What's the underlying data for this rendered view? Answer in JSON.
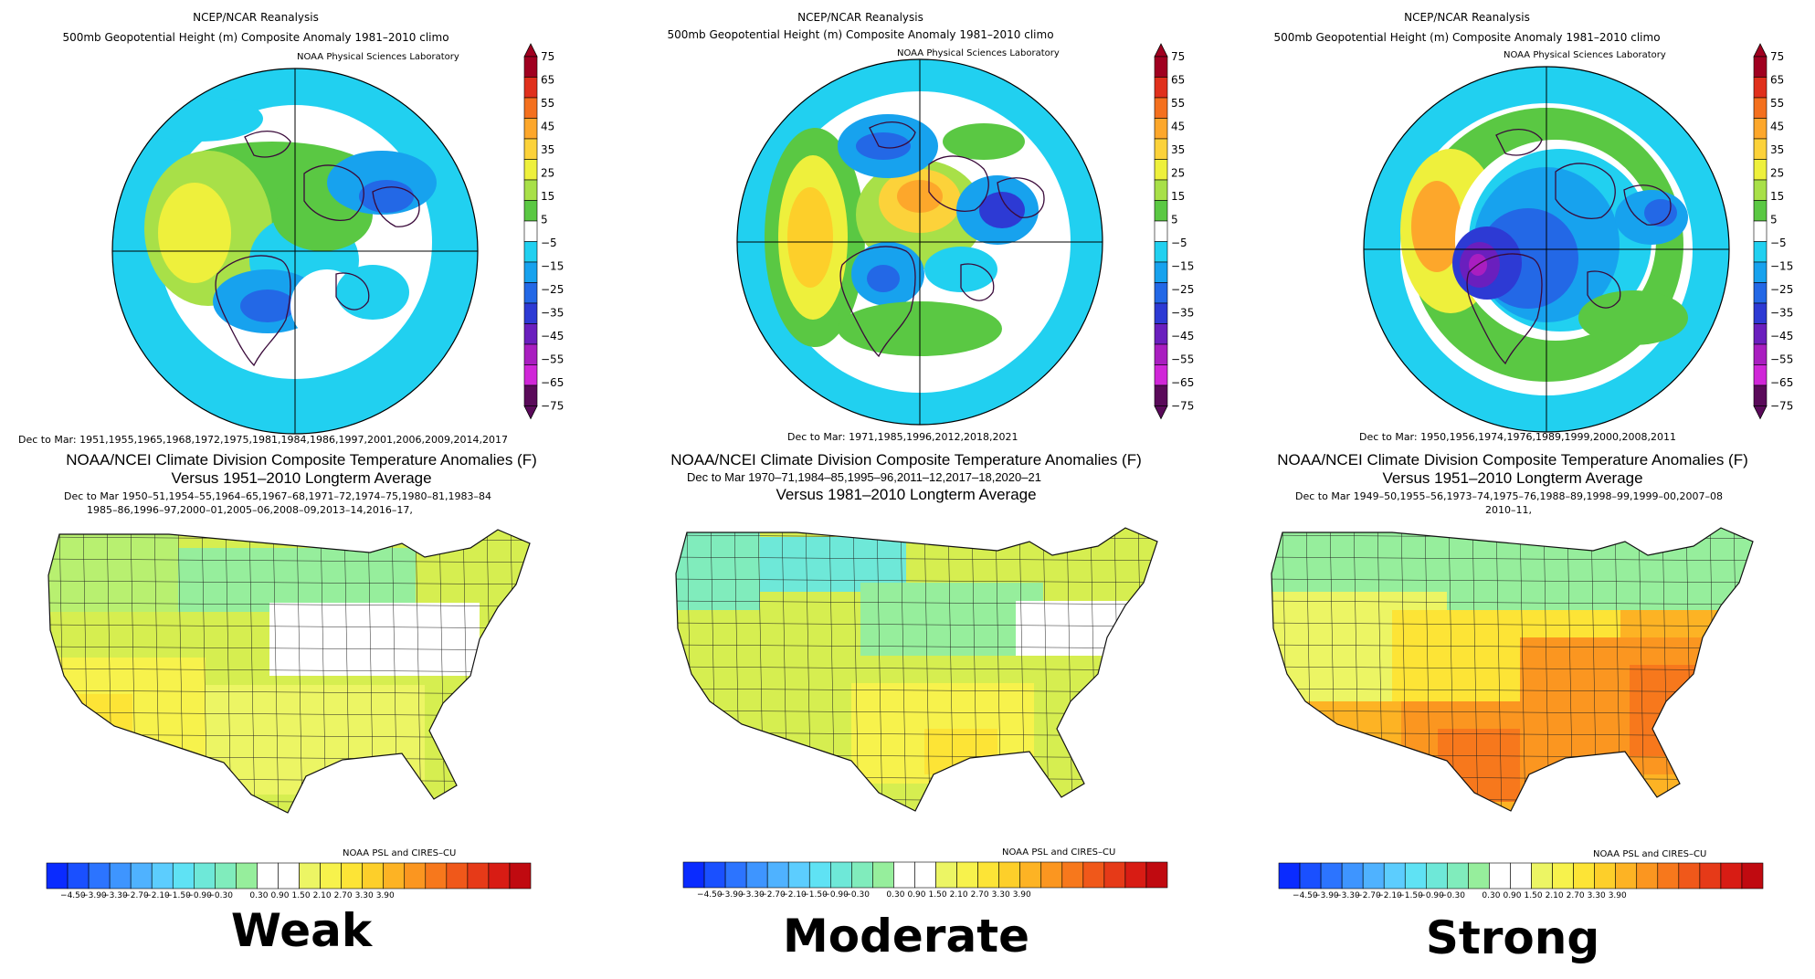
{
  "panels": [
    {
      "strength": "Weak",
      "reanalysis_title_1": "NCEP/NCAR Reanalysis",
      "reanalysis_title_2": "500mb Geopotential Height (m) Composite Anomaly 1981–2010 climo",
      "psl_credit": "NOAA Physical Sciences Laboratory",
      "reanalysis_years": "Dec to Mar: 1951,1955,1965,1968,1972,1975,1981,1984,1986,1997,2001,2006,2009,2014,2017",
      "climdiv_title": "NOAA/NCEI Climate Division Composite Temperature Anomalies (F)",
      "climdiv_subtitle": "Versus 1951–2010 Longterm Average",
      "climdiv_years_1": "Dec to Mar   1950–51,1954–55,1964–65,1967–68,1971–72,1974–75,1980–81,1983–84",
      "climdiv_years_2": "1985–86,1996–97,2000–01,2005–06,2008–09,2013–14,2016–17,",
      "climdiv_years_3": "",
      "map_credit": "NOAA PSL and CIRES–CU"
    },
    {
      "strength": "Moderate",
      "reanalysis_title_1": "NCEP/NCAR Reanalysis",
      "reanalysis_title_2": "500mb Geopotential Height (m) Composite Anomaly 1981–2010 climo",
      "psl_credit": "NOAA Physical Sciences Laboratory",
      "reanalysis_years": "Dec to Mar: 1971,1985,1996,2012,2018,2021",
      "climdiv_title": "NOAA/NCEI Climate Division Composite Temperature Anomalies (F)",
      "climdiv_subtitle": "Dec to Mar   1970–71,1984–85,1995–96,2011–12,2017–18,2020–21",
      "climdiv_years_1": "Versus 1981–2010 Longterm Average",
      "climdiv_years_2": "",
      "climdiv_years_3": "",
      "map_credit": "NOAA PSL and CIRES–CU"
    },
    {
      "strength": "Strong",
      "reanalysis_title_1": "NCEP/NCAR Reanalysis",
      "reanalysis_title_2": "500mb Geopotential Height (m) Composite Anomaly 1981–2010 climo",
      "psl_credit": "NOAA Physical Sciences Laboratory",
      "reanalysis_years": "Dec to Mar: 1950,1956,1974,1976,1989,1999,2000,2008,2011",
      "climdiv_title": "NOAA/NCEI Climate Division Composite Temperature Anomalies (F)",
      "climdiv_subtitle": "Versus 1951–2010 Longterm Average",
      "climdiv_years_1": "Dec to Mar   1949–50,1955–56,1973–74,1975–76,1988–89,1998–99,1999–00,2007–08",
      "climdiv_years_2": "2010–11,",
      "climdiv_years_3": "",
      "map_credit": "NOAA PSL and CIRES–CU"
    }
  ],
  "chart_data": [
    {
      "type": "heatmap",
      "title": "500mb Geopotential Height (m) Composite Anomaly",
      "colorbar_ticks": [
        "75",
        "65",
        "55",
        "45",
        "35",
        "25",
        "15",
        "5",
        "−5",
        "−15",
        "−25",
        "−35",
        "−45",
        "−55",
        "−65",
        "−75"
      ],
      "colorbar_colors": [
        "#a00020",
        "#e0301c",
        "#f4701e",
        "#fda72b",
        "#fcd23a",
        "#eef03c",
        "#a8e048",
        "#5ac843",
        "#ffffff",
        "#21d0f0",
        "#17a2ee",
        "#2368e6",
        "#2d3ad4",
        "#6a1fbe",
        "#a91ec0",
        "#d026d8",
        "#5a0a5a"
      ]
    },
    {
      "type": "heatmap",
      "title": "Climate Division Composite Temperature Anomalies (F)",
      "colorbar_ticks": [
        "−4.50",
        "−3.90",
        "−3.30",
        "−2.70",
        "−2.10",
        "−1.50",
        "−0.90",
        "−0.30",
        "0.30",
        "0.90",
        "1.50",
        "2.10",
        "2.70",
        "3.30",
        "3.90"
      ],
      "colorbar_colors": [
        "#0a2bff",
        "#1a50ff",
        "#2c74ff",
        "#3e95ff",
        "#4fb2ff",
        "#5ccdfe",
        "#5fe2f4",
        "#6ee8d8",
        "#80ecbc",
        "#96ee9c",
        "#ffffff",
        "#ffffff",
        "#ecf564",
        "#f7f24c",
        "#fde436",
        "#fdcf2a",
        "#fdb324",
        "#fb9620",
        "#f7781c",
        "#f0581a",
        "#e63a18",
        "#d81c14",
        "#c00a10"
      ]
    }
  ]
}
